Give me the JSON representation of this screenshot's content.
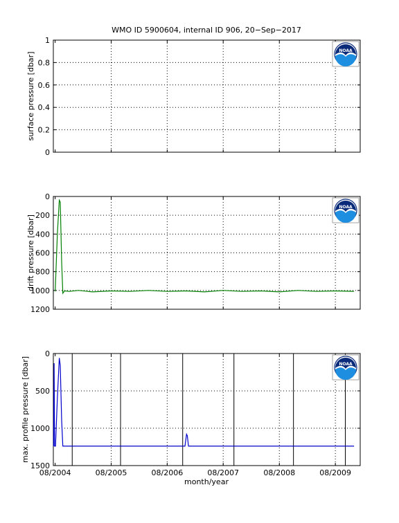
{
  "title": "WMO ID 5900604, internal ID 906, 20−Sep−2017",
  "logo_text": "NOAA",
  "x_label": "month/year",
  "x_ticks": [
    "08/2004",
    "08/2005",
    "08/2006",
    "08/2007",
    "08/2008",
    "08/2009"
  ],
  "chart_data": [
    {
      "type": "line",
      "ylabel": "surface pressure [dbar]",
      "ylim": [
        0,
        1
      ],
      "yticks": [
        "0",
        "0.2",
        "0.4",
        "0.6",
        "0.8",
        "1"
      ],
      "xlim": [
        "2004-07-20",
        "2010-01-10"
      ],
      "grid": true,
      "series": []
    },
    {
      "type": "line",
      "ylabel": "drift pressure [dbar]",
      "ylim": [
        1200,
        0
      ],
      "yticks": [
        "0",
        "200",
        "400",
        "600",
        "800",
        "1000",
        "1200"
      ],
      "xlim": [
        "2004-07-20",
        "2010-01-10"
      ],
      "grid": true,
      "series": [
        {
          "color": "#008000",
          "x": [
            "2004-08-01",
            "2004-08-15",
            "2004-08-28",
            "2004-09-03",
            "2004-09-12",
            "2004-09-20",
            "2004-10-01",
            "2004-11-01",
            "2005-01-01",
            "2005-04-01",
            "2005-08-01",
            "2005-12-01",
            "2006-04-01",
            "2006-08-01",
            "2006-12-01",
            "2007-04-01",
            "2007-08-01",
            "2007-12-01",
            "2008-04-01",
            "2008-08-01",
            "2008-12-01",
            "2009-04-01",
            "2009-08-01",
            "2009-12-01"
          ],
          "y": [
            1010,
            400,
            40,
            60,
            700,
            1030,
            1005,
            1010,
            1000,
            1015,
            1005,
            1010,
            1000,
            1010,
            1005,
            1015,
            1000,
            1010,
            1005,
            1015,
            1000,
            1010,
            1005,
            1010
          ]
        }
      ]
    },
    {
      "type": "line",
      "ylabel": "max. profile pressure [dbar]",
      "ylim": [
        1500,
        0
      ],
      "yticks": [
        "0",
        "500",
        "1000",
        "1500"
      ],
      "xlim": [
        "2004-07-20",
        "2010-01-10"
      ],
      "grid": true,
      "vertical_lines": [
        "2004-11-20",
        "2005-10-01",
        "2006-11-10",
        "2007-10-10",
        "2008-11-01",
        "2009-10-05"
      ],
      "series": [
        {
          "color": "#0000cc",
          "x": [
            "2004-07-22",
            "2004-07-25",
            "2004-07-28",
            "2004-08-03",
            "2004-08-15",
            "2004-08-28",
            "2004-09-03",
            "2004-09-12",
            "2004-09-20",
            "2004-10-15",
            "2006-11-25",
            "2006-12-05",
            "2006-12-10",
            "2006-12-18",
            "2007-01-01",
            "2009-12-01"
          ],
          "y": [
            1240,
            130,
            1240,
            1240,
            600,
            60,
            160,
            900,
            1240,
            1240,
            1240,
            1080,
            1100,
            1240,
            1240,
            1240
          ]
        }
      ]
    }
  ]
}
